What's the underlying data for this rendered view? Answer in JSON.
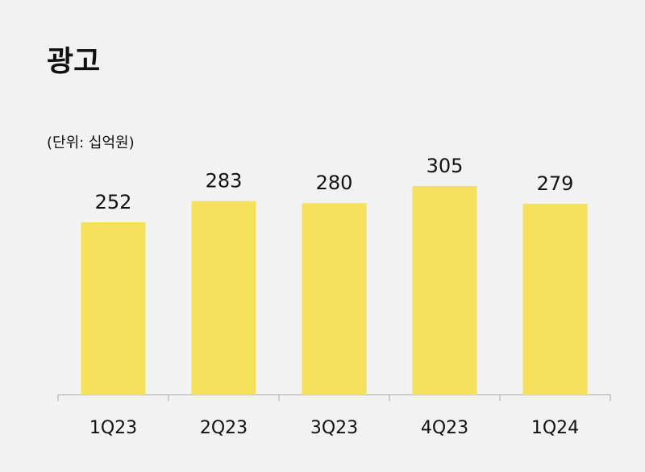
{
  "chart_data": {
    "type": "bar",
    "title": "광고",
    "subtitle": "(단위: 십억원)",
    "categories": [
      "1Q23",
      "2Q23",
      "3Q23",
      "4Q23",
      "1Q24"
    ],
    "values": [
      252,
      283,
      280,
      305,
      279
    ],
    "color": "#f5e15c"
  }
}
